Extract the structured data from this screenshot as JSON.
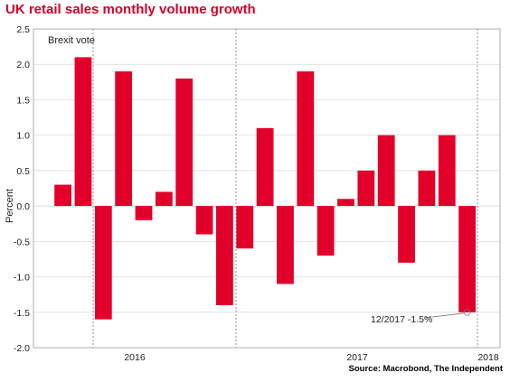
{
  "chart_data": {
    "type": "bar",
    "title": "UK retail sales monthly volume growth",
    "ylabel": "Percent",
    "xlabel": "",
    "source": "Source: Macrobond, The Independent",
    "ylim": [
      -2.0,
      2.5
    ],
    "yticks": [
      "2.5",
      "2.0",
      "1.5",
      "1.0",
      "0.5",
      "0.0",
      "-0.5",
      "-1.0",
      "-1.5",
      "-2.0"
    ],
    "ytick_values": [
      2.5,
      2.0,
      1.5,
      1.0,
      0.5,
      0.0,
      -0.5,
      -1.0,
      -1.5,
      -2.0
    ],
    "xticks": [
      "2016",
      "2017",
      "2018"
    ],
    "gridlines": "horizontal",
    "bar_color": "#e2002a",
    "series": [
      {
        "values": [
          0.3,
          2.1,
          -1.6,
          1.9,
          -0.2,
          0.2,
          1.8,
          -0.4,
          -1.4,
          -0.6,
          1.1,
          -1.1,
          1.9,
          -0.7,
          0.1,
          0.5,
          1.0,
          -0.8,
          0.5,
          1.0,
          -1.5
        ]
      }
    ],
    "annotations": {
      "event_label": "Brexit vote",
      "callout": "12/2017 -1.5%"
    }
  }
}
